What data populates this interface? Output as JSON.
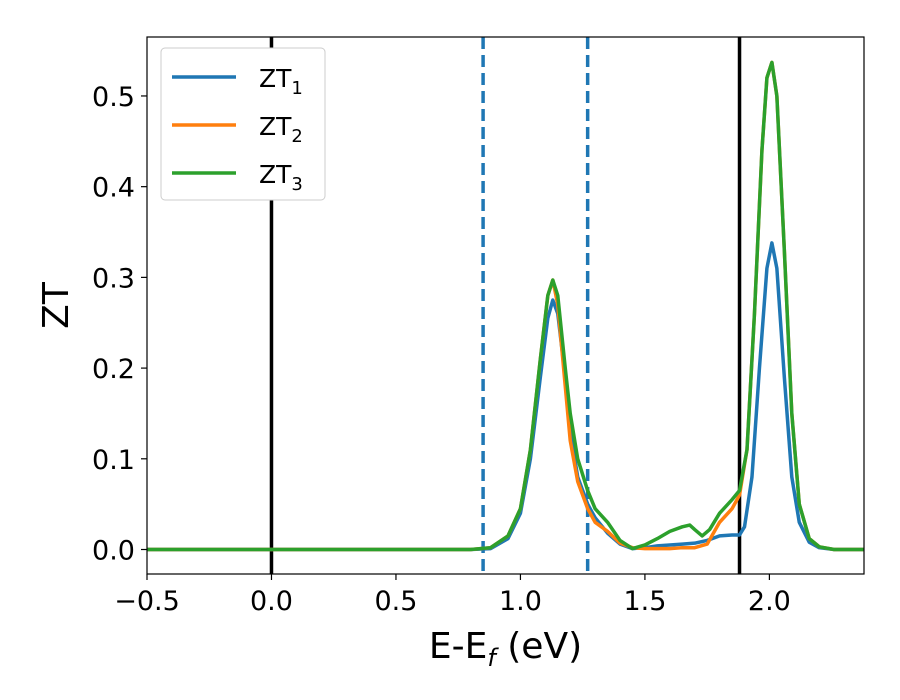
{
  "chart_data": {
    "type": "line",
    "title": "",
    "xlabel": {
      "base": "E-E",
      "sub": "f",
      "rest": " (eV)"
    },
    "ylabel": "ZT",
    "xlim": [
      -0.5,
      2.38
    ],
    "ylim": [
      -0.027,
      0.565
    ],
    "xticks": [
      -0.5,
      0.0,
      0.5,
      1.0,
      1.5,
      2.0
    ],
    "xtick_labels": [
      "−0.5",
      "0.0",
      "0.5",
      "1.0",
      "1.5",
      "2.0"
    ],
    "yticks": [
      0.0,
      0.1,
      0.2,
      0.3,
      0.4,
      0.5
    ],
    "ytick_labels": [
      "0.0",
      "0.1",
      "0.2",
      "0.3",
      "0.4",
      "0.5"
    ],
    "grid": false,
    "legend_position": "top-left",
    "vlines": [
      {
        "x": 0.0,
        "style": "solid",
        "color": "#000000"
      },
      {
        "x": 0.85,
        "style": "dashed",
        "color": "#1f77b4"
      },
      {
        "x": 1.27,
        "style": "dashed",
        "color": "#1f77b4"
      },
      {
        "x": 1.88,
        "style": "solid",
        "color": "#000000"
      }
    ],
    "series": [
      {
        "name": "ZT",
        "name_sub": "1",
        "color": "#1f77b4",
        "points": [
          [
            -0.5,
            0
          ],
          [
            0.8,
            0
          ],
          [
            0.88,
            0.001
          ],
          [
            0.95,
            0.012
          ],
          [
            1.0,
            0.04
          ],
          [
            1.04,
            0.1
          ],
          [
            1.08,
            0.19
          ],
          [
            1.11,
            0.255
          ],
          [
            1.13,
            0.275
          ],
          [
            1.15,
            0.26
          ],
          [
            1.18,
            0.19
          ],
          [
            1.2,
            0.13
          ],
          [
            1.23,
            0.08
          ],
          [
            1.27,
            0.05
          ],
          [
            1.3,
            0.035
          ],
          [
            1.35,
            0.018
          ],
          [
            1.4,
            0.006
          ],
          [
            1.45,
            0.001
          ],
          [
            1.5,
            0.002
          ],
          [
            1.55,
            0.004
          ],
          [
            1.6,
            0.005
          ],
          [
            1.65,
            0.006
          ],
          [
            1.7,
            0.007
          ],
          [
            1.75,
            0.01
          ],
          [
            1.8,
            0.015
          ],
          [
            1.85,
            0.016
          ],
          [
            1.88,
            0.016
          ],
          [
            1.9,
            0.025
          ],
          [
            1.93,
            0.08
          ],
          [
            1.96,
            0.2
          ],
          [
            1.99,
            0.31
          ],
          [
            2.01,
            0.338
          ],
          [
            2.03,
            0.31
          ],
          [
            2.06,
            0.19
          ],
          [
            2.09,
            0.08
          ],
          [
            2.12,
            0.03
          ],
          [
            2.16,
            0.008
          ],
          [
            2.2,
            0.002
          ],
          [
            2.26,
            0
          ],
          [
            2.38,
            0
          ]
        ]
      },
      {
        "name": "ZT",
        "name_sub": "2",
        "color": "#ff7f0e",
        "points": [
          [
            -0.5,
            0
          ],
          [
            0.8,
            0
          ],
          [
            0.88,
            0.002
          ],
          [
            0.95,
            0.015
          ],
          [
            1.0,
            0.045
          ],
          [
            1.04,
            0.11
          ],
          [
            1.08,
            0.21
          ],
          [
            1.11,
            0.28
          ],
          [
            1.13,
            0.297
          ],
          [
            1.15,
            0.27
          ],
          [
            1.18,
            0.18
          ],
          [
            1.2,
            0.12
          ],
          [
            1.23,
            0.075
          ],
          [
            1.27,
            0.045
          ],
          [
            1.3,
            0.03
          ],
          [
            1.35,
            0.02
          ],
          [
            1.4,
            0.007
          ],
          [
            1.45,
            0.002
          ],
          [
            1.5,
            0.001
          ],
          [
            1.55,
            0.001
          ],
          [
            1.6,
            0.001
          ],
          [
            1.65,
            0.002
          ],
          [
            1.7,
            0.002
          ],
          [
            1.75,
            0.006
          ],
          [
            1.8,
            0.03
          ],
          [
            1.85,
            0.045
          ],
          [
            1.88,
            0.06
          ],
          [
            1.91,
            0.11
          ],
          [
            1.94,
            0.26
          ],
          [
            1.97,
            0.44
          ],
          [
            1.99,
            0.52
          ],
          [
            2.01,
            0.537
          ],
          [
            2.03,
            0.5
          ],
          [
            2.06,
            0.33
          ],
          [
            2.09,
            0.15
          ],
          [
            2.12,
            0.05
          ],
          [
            2.16,
            0.012
          ],
          [
            2.2,
            0.003
          ],
          [
            2.26,
            0
          ],
          [
            2.38,
            0
          ]
        ]
      },
      {
        "name": "ZT",
        "name_sub": "3",
        "color": "#2ca02c",
        "points": [
          [
            -0.5,
            0
          ],
          [
            0.8,
            0
          ],
          [
            0.88,
            0.002
          ],
          [
            0.95,
            0.015
          ],
          [
            1.0,
            0.045
          ],
          [
            1.04,
            0.11
          ],
          [
            1.08,
            0.21
          ],
          [
            1.11,
            0.28
          ],
          [
            1.13,
            0.297
          ],
          [
            1.15,
            0.28
          ],
          [
            1.18,
            0.2
          ],
          [
            1.2,
            0.15
          ],
          [
            1.23,
            0.1
          ],
          [
            1.27,
            0.065
          ],
          [
            1.3,
            0.045
          ],
          [
            1.35,
            0.03
          ],
          [
            1.4,
            0.01
          ],
          [
            1.45,
            0.001
          ],
          [
            1.5,
            0.005
          ],
          [
            1.55,
            0.012
          ],
          [
            1.6,
            0.02
          ],
          [
            1.65,
            0.025
          ],
          [
            1.68,
            0.027
          ],
          [
            1.7,
            0.022
          ],
          [
            1.73,
            0.015
          ],
          [
            1.76,
            0.022
          ],
          [
            1.8,
            0.04
          ],
          [
            1.85,
            0.055
          ],
          [
            1.88,
            0.065
          ],
          [
            1.91,
            0.11
          ],
          [
            1.94,
            0.26
          ],
          [
            1.97,
            0.44
          ],
          [
            1.99,
            0.52
          ],
          [
            2.01,
            0.537
          ],
          [
            2.03,
            0.5
          ],
          [
            2.06,
            0.33
          ],
          [
            2.09,
            0.15
          ],
          [
            2.12,
            0.05
          ],
          [
            2.16,
            0.012
          ],
          [
            2.2,
            0.003
          ],
          [
            2.26,
            0
          ],
          [
            2.38,
            0
          ]
        ]
      }
    ]
  }
}
